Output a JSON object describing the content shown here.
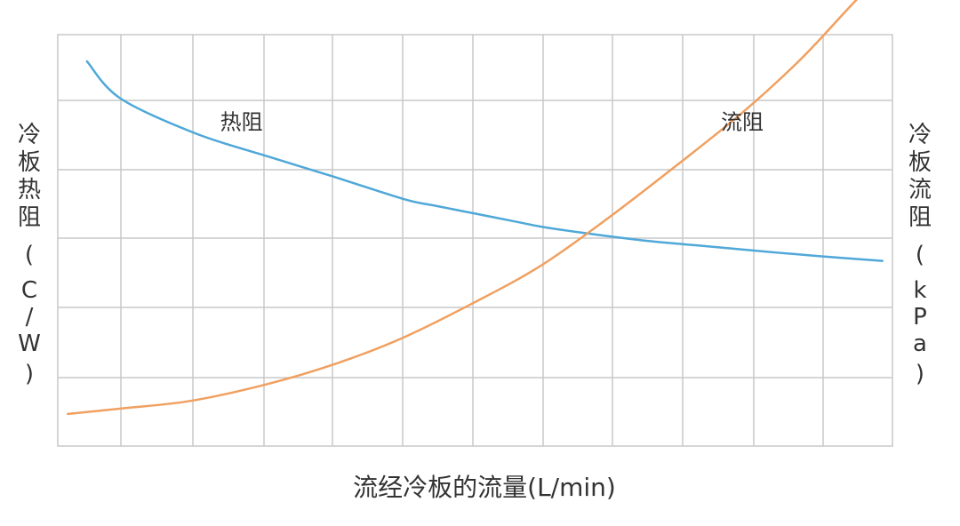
{
  "chart_data": {
    "type": "line",
    "xlabel": "流经冷板的流量(L/min)",
    "ylabel_left_chars": [
      "冷",
      "板",
      "热",
      "阻",
      "(",
      "C",
      "/",
      "W",
      ")"
    ],
    "ylabel_right_chars": [
      "冷",
      "板",
      "流",
      "阻",
      "(",
      "k",
      "P",
      "a",
      ")"
    ],
    "xlim": [
      0,
      100
    ],
    "ylim": [
      0,
      100
    ],
    "grid": true,
    "series": [
      {
        "name": "热阻",
        "axis": "left",
        "color": "#4fa8d8",
        "x": [
          3.5,
          7.5,
          16.5,
          25,
          33,
          41.5,
          45,
          50,
          55,
          58,
          63,
          70,
          77,
          84,
          91,
          98.8
        ],
        "y": [
          93.5,
          84.5,
          76.0,
          70.5,
          65.5,
          60.0,
          58.5,
          56.5,
          54.5,
          53.3,
          51.8,
          50.0,
          48.7,
          47.4,
          46.2,
          45.0
        ]
      },
      {
        "name": "流阻",
        "axis": "right",
        "color": "#f0a060",
        "x": [
          1.2,
          8,
          16,
          25,
          33,
          41,
          50,
          58,
          66,
          74,
          82,
          89,
          95,
          99.5
        ],
        "y": [
          7.8,
          9.2,
          11.0,
          15.0,
          19.8,
          26.0,
          35.0,
          44.0,
          55.5,
          68.0,
          81.0,
          94.0,
          107.0,
          116.5
        ]
      }
    ],
    "annotations": [
      {
        "text": "热阻",
        "x": 22,
        "y": 77
      },
      {
        "text": "流阻",
        "x": 82,
        "y": 77
      }
    ]
  }
}
